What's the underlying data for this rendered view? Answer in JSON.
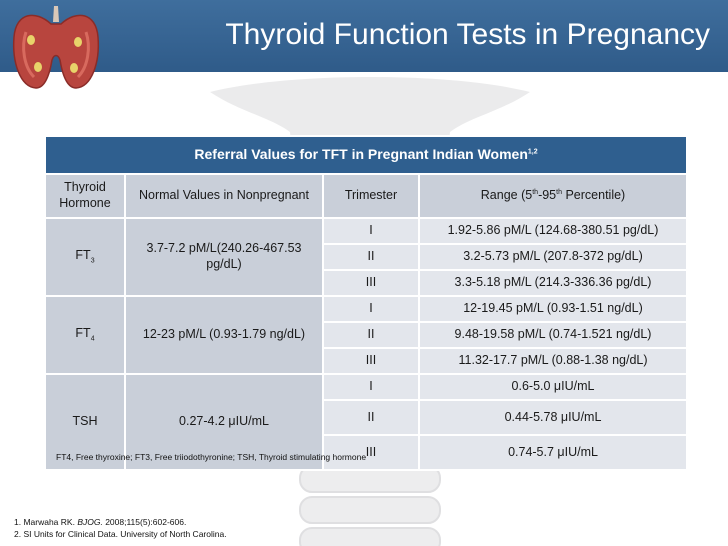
{
  "slide": {
    "title": "Thyroid Function Tests in Pregnancy"
  },
  "table": {
    "caption": "Referral Values for TFT in Pregnant Indian Women",
    "caption_sup": "1,2",
    "headers": {
      "thyroid_hormone": "Thyroid Hormone",
      "normal_values": "Normal Values in Nonpregnant",
      "trimester": "Trimester",
      "range_prefix": "Range (5",
      "range_sup1": "th",
      "range_mid": "-95",
      "range_sup2": "th",
      "range_suffix": " Percentile)"
    },
    "groups": [
      {
        "hormone": "FT",
        "hormone_sub": "3",
        "normal": "3.7-7.2 pM/L(240.26-467.53 pg/dL)",
        "rows": [
          {
            "trimester": "I",
            "range": "1.92-5.86 pM/L (124.68-380.51 pg/dL)"
          },
          {
            "trimester": "II",
            "range": "3.2-5.73 pM/L (207.8-372 pg/dL)"
          },
          {
            "trimester": "III",
            "range": "3.3-5.18 pM/L (214.3-336.36 pg/dL)"
          }
        ]
      },
      {
        "hormone": "FT",
        "hormone_sub": "4",
        "normal": "12-23 pM/L (0.93-1.79 ng/dL)",
        "rows": [
          {
            "trimester": "I",
            "range": "12-19.45 pM/L (0.93-1.51 ng/dL)"
          },
          {
            "trimester": "II",
            "range": "9.48-19.58 pM/L (0.74-1.521 ng/dL)"
          },
          {
            "trimester": "III",
            "range": "11.32-17.7 pM/L (0.88-1.38 ng/dL)"
          }
        ]
      },
      {
        "hormone": "TSH",
        "hormone_sub": "",
        "normal": "0.27-4.2 μIU/mL",
        "rows": [
          {
            "trimester": "I",
            "range": "0.6-5.0 μIU/mL"
          },
          {
            "trimester": "II",
            "range": "0.44-5.78 μIU/mL"
          },
          {
            "trimester": "III",
            "range": "0.74-5.7 μIU/mL"
          }
        ]
      }
    ]
  },
  "footnote": "FT4, Free thyroxine; FT3, Free triiodothyronine; TSH, Thyroid stimulating hormone",
  "references": {
    "ref1_prefix": "1. Marwaha RK. ",
    "ref1_journal": "BJOG.",
    "ref1_suffix": " 2008;115(5):602-606.",
    "ref2": "2. SI Units for Clinical Data. University of North Carolina."
  },
  "colors": {
    "header": "#2f5b89",
    "caption_bg": "#2f5f8f",
    "header_cell": "#c9cfd9",
    "body_cell": "#e3e6ec"
  }
}
